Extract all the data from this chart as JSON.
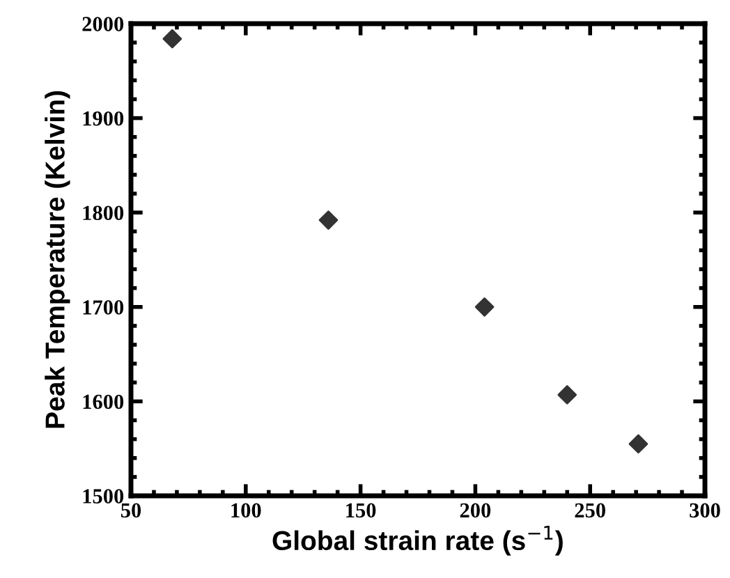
{
  "chart_data": {
    "type": "scatter",
    "xlabel": "Global strain rate (s$^{−1}$)",
    "ylabel": "Peak Temperature (Kelvin)",
    "x": [
      68,
      136,
      204,
      240,
      271
    ],
    "series": [
      {
        "color": "#333333",
        "values": [
          1984,
          1792,
          1700,
          1607,
          1555
        ]
      }
    ],
    "marker": "diamond",
    "xlim": [
      50,
      300
    ],
    "xticks": [
      50,
      100,
      150,
      200,
      250,
      300
    ],
    "ylim": [
      1500,
      2000
    ],
    "yticks": [
      1500,
      1600,
      1700,
      1800,
      1900,
      2000
    ],
    "grid": false,
    "legend": false
  }
}
